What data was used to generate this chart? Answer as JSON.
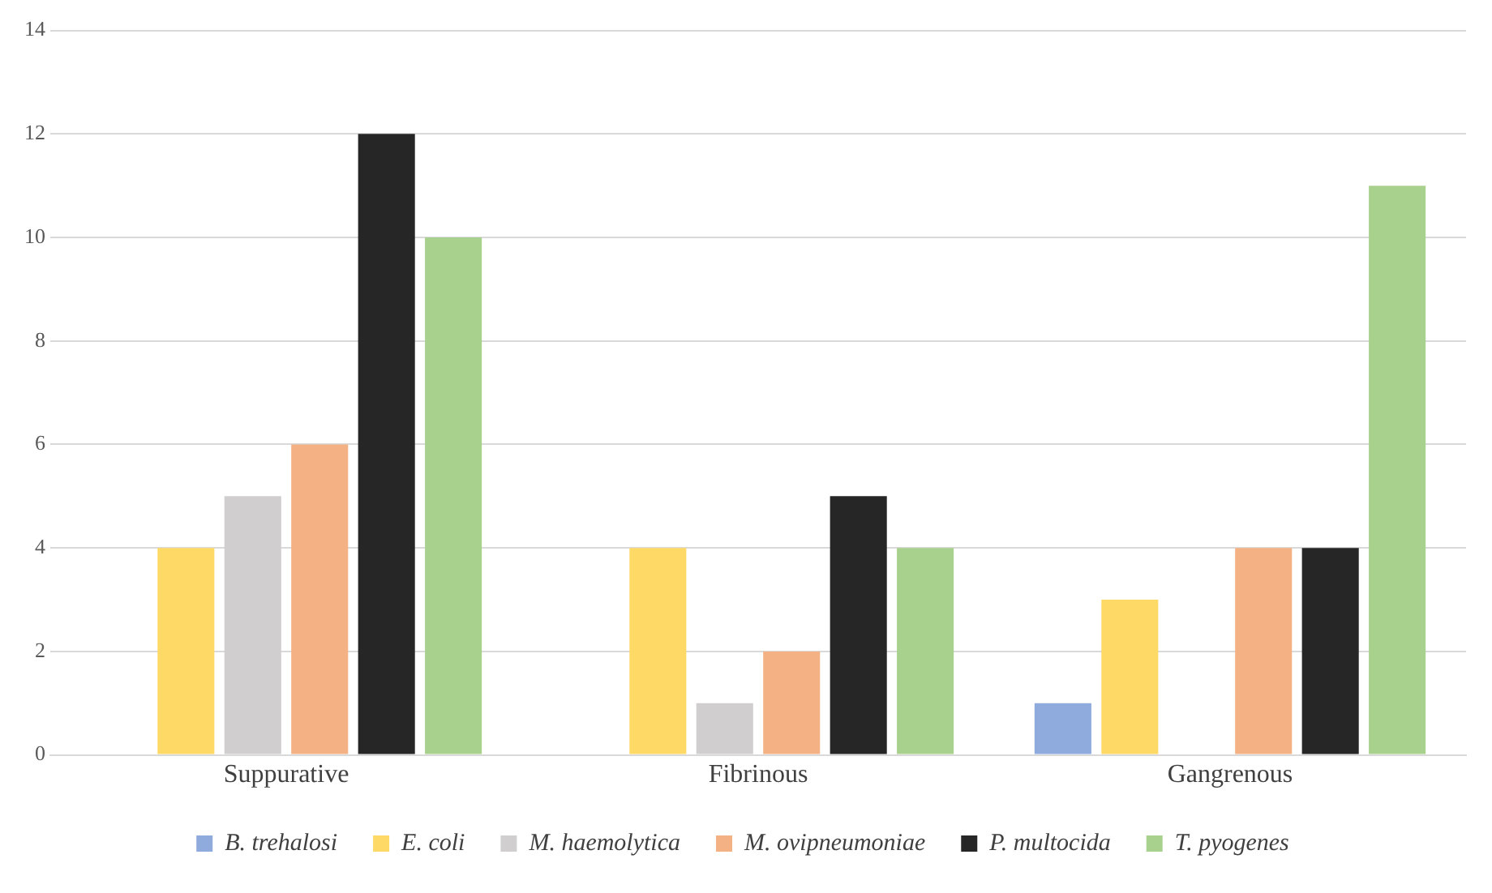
{
  "chart_data": {
    "type": "bar",
    "categories": [
      "Suppurative",
      "Fibrinous",
      "Gangrenous"
    ],
    "series": [
      {
        "name": "B. trehalosi",
        "color": "#8faadc",
        "values": [
          0,
          0,
          1
        ]
      },
      {
        "name": "E. coli",
        "color": "#ffd966",
        "values": [
          4,
          4,
          3
        ]
      },
      {
        "name": "M. haemolytica",
        "color": "#d0cece",
        "values": [
          5,
          1,
          0
        ]
      },
      {
        "name": "M. ovipneumoniae",
        "color": "#f4b183",
        "values": [
          6,
          2,
          4
        ]
      },
      {
        "name": "P. multocida",
        "color": "#262626",
        "values": [
          12,
          5,
          4
        ]
      },
      {
        "name": "T. pyogenes",
        "color": "#a9d18e",
        "values": [
          10,
          4,
          11
        ]
      }
    ],
    "ylim": [
      0,
      14
    ],
    "yticks": [
      0,
      2,
      4,
      6,
      8,
      10,
      12,
      14
    ],
    "grid": "y",
    "legend": "bottom"
  }
}
